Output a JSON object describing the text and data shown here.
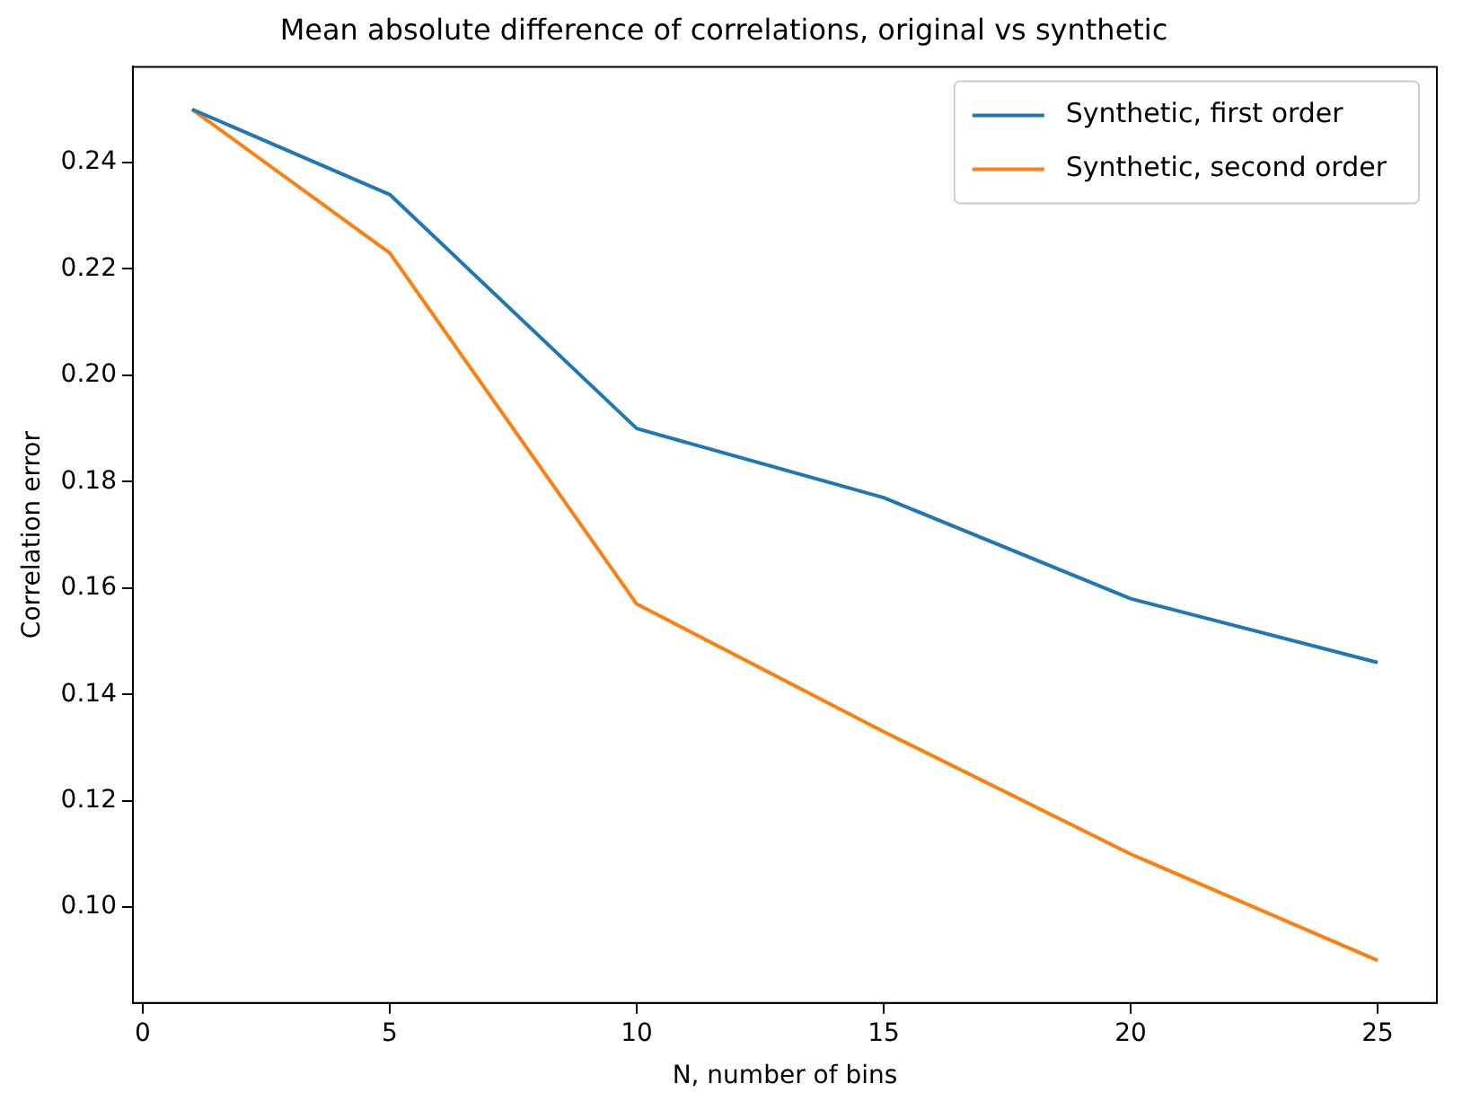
{
  "chart_data": {
    "type": "line",
    "title": "Mean absolute difference of correlations, original vs synthetic",
    "xlabel": "N, number of bins",
    "ylabel": "Correlation error",
    "x": [
      1,
      5,
      10,
      15,
      20,
      25
    ],
    "series": [
      {
        "name": "Synthetic, first order",
        "color": "#1f77b4",
        "values": [
          0.25,
          0.234,
          0.19,
          0.177,
          0.158,
          0.146
        ]
      },
      {
        "name": "Synthetic, second order",
        "color": "#ff7f0e",
        "values": [
          0.25,
          0.223,
          0.157,
          0.133,
          0.11,
          0.09
        ]
      }
    ],
    "xlim": [
      -0.2,
      26.2
    ],
    "ylim": [
      0.082,
      0.258
    ],
    "xticks": [
      0,
      5,
      10,
      15,
      20,
      25
    ],
    "yticks": [
      {
        "value": 0.1,
        "label": "0.10"
      },
      {
        "value": 0.12,
        "label": "0.12"
      },
      {
        "value": 0.14,
        "label": "0.14"
      },
      {
        "value": 0.16,
        "label": "0.16"
      },
      {
        "value": 0.18,
        "label": "0.18"
      },
      {
        "value": 0.2,
        "label": "0.20"
      },
      {
        "value": 0.22,
        "label": "0.22"
      },
      {
        "value": 0.24,
        "label": "0.24"
      }
    ],
    "grid": false,
    "legend": "top right",
    "marker": "none",
    "line_style": "solid"
  }
}
